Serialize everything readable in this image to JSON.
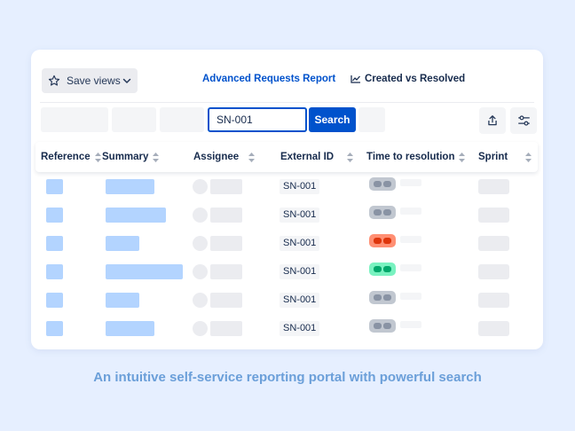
{
  "toolbar": {
    "save_views_label": "Save views",
    "advanced_report_label": "Advanced Requests Report",
    "created_vs_resolved_label": "Created vs Resolved"
  },
  "search": {
    "value": "SN-001",
    "button_label": "Search"
  },
  "table": {
    "columns": [
      "Reference",
      "Summary",
      "Assignee",
      "External ID",
      "Time to resolution",
      "Sprint"
    ],
    "rows": [
      {
        "external_id": "SN-001",
        "status": "neutral"
      },
      {
        "external_id": "SN-001",
        "status": "neutral"
      },
      {
        "external_id": "SN-001",
        "status": "breached"
      },
      {
        "external_id": "SN-001",
        "status": "met"
      },
      {
        "external_id": "SN-001",
        "status": "neutral"
      },
      {
        "external_id": "SN-001",
        "status": "neutral"
      }
    ]
  },
  "colors": {
    "accent": "#0052cc",
    "placeholder_blue": "#b3d4ff",
    "status_neutral": "#c1c7d0",
    "status_breached": "#ff8f73",
    "status_met": "#79f2c0"
  },
  "caption": "An intuitive self-service reporting portal with powerful search"
}
